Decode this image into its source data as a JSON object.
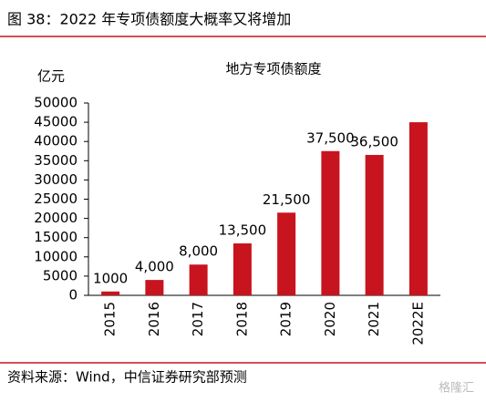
{
  "caption": "图 38：2022 年专项债额度大概率又将增加",
  "source": "资料来源：Wind，中信证券研究部预测",
  "watermark": "格隆汇",
  "chart_data": {
    "type": "bar",
    "title": "地方专项债额度",
    "y_label": "亿元",
    "categories": [
      "2015",
      "2016",
      "2017",
      "2018",
      "2019",
      "2020",
      "2021",
      "2022E"
    ],
    "values": [
      1000,
      4000,
      8000,
      13500,
      21500,
      37500,
      36500,
      45000
    ],
    "value_labels": [
      "1000",
      "4,000",
      "8,000",
      "13,500",
      "21,500",
      "37,500",
      "36,500",
      null
    ],
    "color": "#c8141e",
    "ylim": [
      0,
      50000
    ],
    "yticks": [
      0,
      5000,
      10000,
      15000,
      20000,
      25000,
      30000,
      35000,
      40000,
      45000,
      50000
    ]
  }
}
